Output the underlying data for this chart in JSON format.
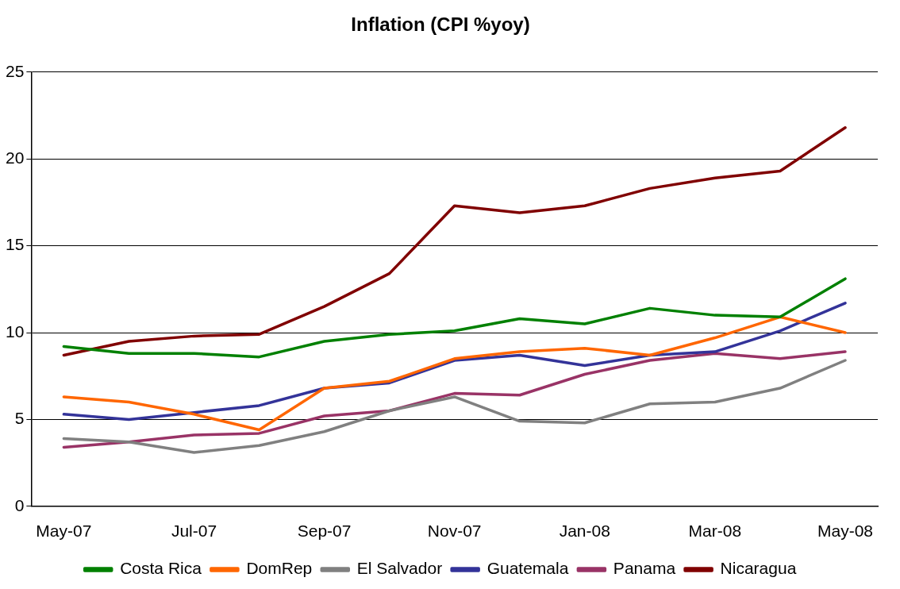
{
  "chart_data": {
    "type": "line",
    "title": "Inflation (CPI %yoy)",
    "categories": [
      "May-07",
      null,
      "Jul-07",
      null,
      "Sep-07",
      null,
      "Nov-07",
      null,
      "Jan-08",
      null,
      "Mar-08",
      null,
      "May-08"
    ],
    "series": [
      {
        "name": "Costa Rica",
        "color": "#008000",
        "values": [
          9.2,
          8.8,
          8.8,
          8.6,
          9.5,
          9.9,
          10.1,
          10.8,
          10.5,
          11.4,
          11.0,
          10.9,
          13.1
        ]
      },
      {
        "name": "DomRep",
        "color": "#ff6600",
        "values": [
          6.3,
          6.0,
          5.3,
          4.4,
          6.8,
          7.2,
          8.5,
          8.9,
          9.1,
          8.7,
          9.7,
          10.9,
          10.0
        ]
      },
      {
        "name": "El Salvador",
        "color": "#808080",
        "values": [
          3.9,
          3.7,
          3.1,
          3.5,
          4.3,
          5.5,
          6.3,
          4.9,
          4.8,
          5.9,
          6.0,
          6.8,
          8.4
        ]
      },
      {
        "name": "Guatemala",
        "color": "#333399",
        "values": [
          5.3,
          5.0,
          5.4,
          5.8,
          6.8,
          7.1,
          8.4,
          8.7,
          8.1,
          8.7,
          8.9,
          10.1,
          11.7
        ]
      },
      {
        "name": "Panama",
        "color": "#993366",
        "values": [
          3.4,
          3.7,
          4.1,
          4.2,
          5.2,
          5.5,
          6.5,
          6.4,
          7.6,
          8.4,
          8.8,
          8.5,
          8.9
        ]
      },
      {
        "name": "Nicaragua",
        "color": "#800000",
        "values": [
          8.7,
          9.5,
          9.8,
          9.9,
          11.5,
          13.4,
          17.3,
          16.9,
          17.3,
          18.3,
          18.9,
          19.3,
          21.8
        ]
      }
    ],
    "ylim": [
      0,
      25
    ],
    "yticks": [
      0,
      5,
      10,
      15,
      20,
      25
    ],
    "grid": "y",
    "legend": "bottom",
    "marker": "none",
    "line_style": "solid"
  }
}
